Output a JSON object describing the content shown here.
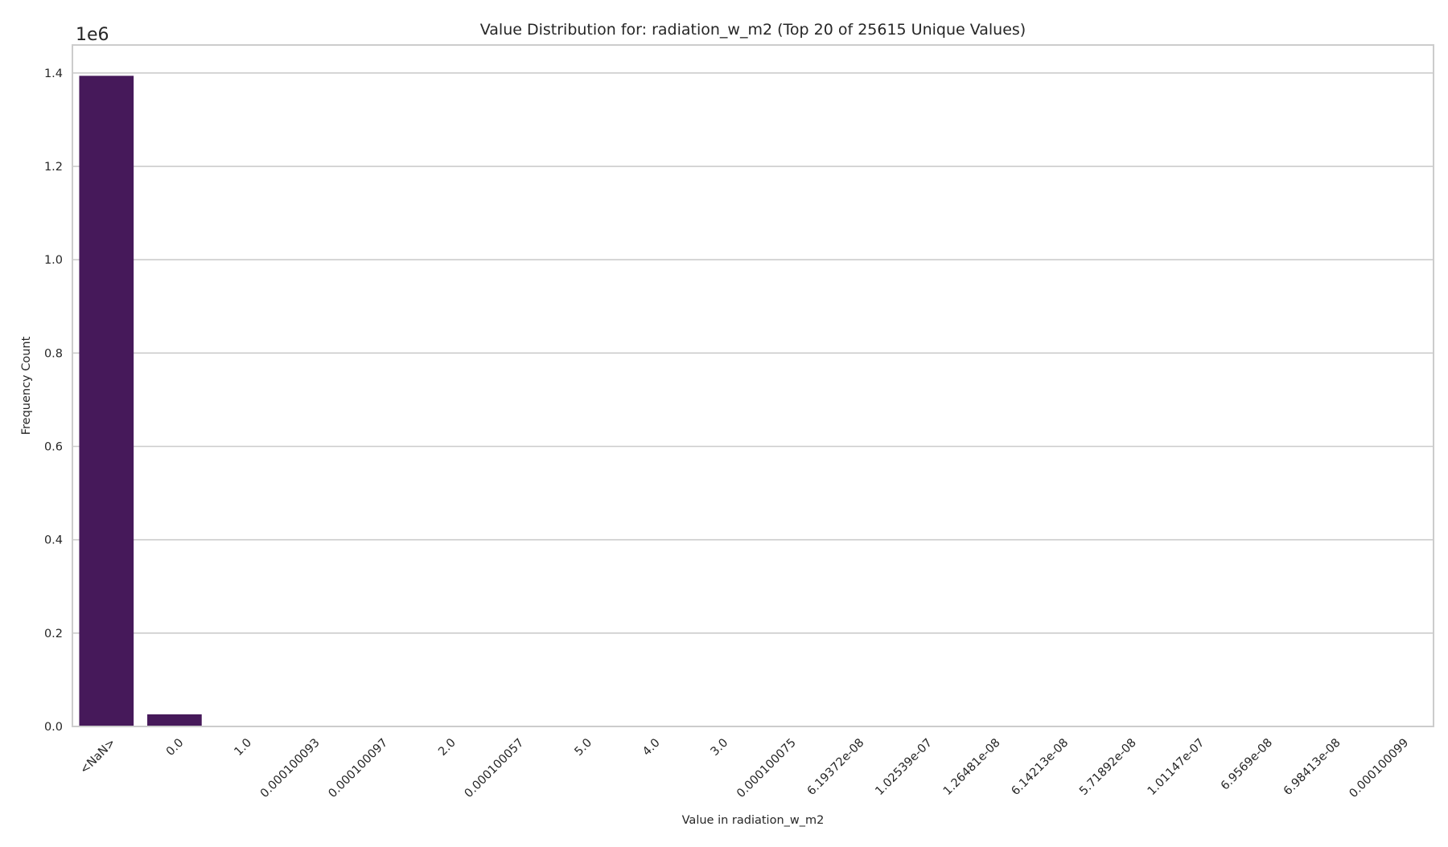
{
  "chart_data": {
    "type": "bar",
    "title": "Value Distribution for: radiation_w_m2 (Top 20 of 25615 Unique Values)",
    "xlabel": "Value in radiation_w_m2",
    "ylabel": "Frequency Count",
    "y_offset_label": "1e6",
    "ylim": [
      0,
      1.46
    ],
    "y_scale": 1000000,
    "yticks": [
      0.0,
      0.2,
      0.4,
      0.6,
      0.8,
      1.0,
      1.2,
      1.4
    ],
    "ytick_labels": [
      "0.0",
      "0.2",
      "0.4",
      "0.6",
      "0.8",
      "1.0",
      "1.2",
      "1.4"
    ],
    "grid": true,
    "bar_color": "#46195a",
    "categories": [
      "<NaN>",
      "0.0",
      "1.0",
      "0.000100093",
      "0.000100097",
      "2.0",
      "0.000100057",
      "5.0",
      "4.0",
      "3.0",
      "0.000100075",
      "6.19372e-08",
      "1.02539e-07",
      "1.26481e-08",
      "6.14213e-08",
      "5.71892e-08",
      "1.01147e-07",
      "6.9569e-08",
      "6.98413e-08",
      "0.000100099"
    ],
    "values": [
      1394000,
      26000,
      900,
      800,
      800,
      700,
      700,
      600,
      600,
      600,
      500,
      500,
      500,
      500,
      500,
      500,
      500,
      500,
      500,
      400
    ]
  }
}
